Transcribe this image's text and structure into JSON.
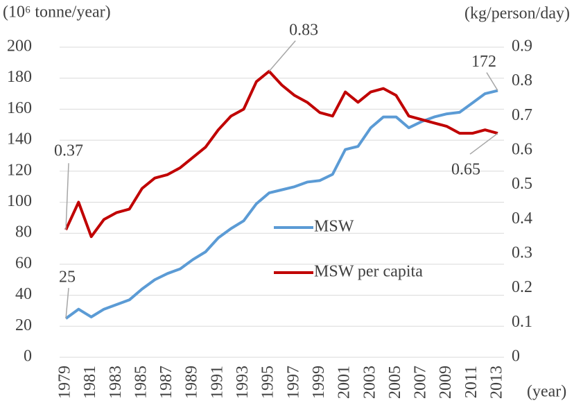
{
  "chart_data": {
    "type": "line",
    "y_label": "(10⁶ tonne/year)",
    "y2_label": "(kg/person/day)",
    "x_label": "(year)",
    "x": [
      1979,
      1980,
      1981,
      1982,
      1983,
      1984,
      1985,
      1986,
      1987,
      1988,
      1989,
      1990,
      1991,
      1992,
      1993,
      1994,
      1995,
      1996,
      1997,
      1998,
      1999,
      2000,
      2001,
      2002,
      2003,
      2004,
      2005,
      2006,
      2007,
      2008,
      2009,
      2010,
      2011,
      2012,
      2013
    ],
    "xlim": [
      1979,
      2013
    ],
    "xticks": [
      1979,
      1981,
      1983,
      1985,
      1987,
      1989,
      1991,
      1993,
      1995,
      1997,
      1999,
      2001,
      2003,
      2005,
      2007,
      2009,
      2011,
      2013
    ],
    "ylim": [
      0,
      200
    ],
    "yticks": [
      0,
      20,
      40,
      60,
      80,
      100,
      120,
      140,
      160,
      180,
      200
    ],
    "y2lim": [
      0,
      0.9
    ],
    "y2ticks": [
      0,
      0.1,
      0.2,
      0.3,
      0.4,
      0.5,
      0.6,
      0.7,
      0.8,
      0.9
    ],
    "grid": true,
    "legend": "center",
    "series": [
      {
        "name": "MSW",
        "color": "#5b9bd5",
        "values": [
          25,
          31,
          26,
          31,
          34,
          37,
          44,
          50,
          54,
          57,
          63,
          68,
          77,
          83,
          88,
          99,
          106,
          108,
          110,
          113,
          114,
          118,
          134,
          136,
          148,
          155,
          155,
          148,
          152,
          155,
          157,
          158,
          164,
          170,
          172
        ],
        "labeled_points": [
          0,
          34
        ]
      },
      {
        "name": "MSW per capita",
        "color": "#c00000",
        "axis": "y2",
        "values": [
          0.37,
          0.45,
          0.35,
          0.4,
          0.42,
          0.43,
          0.49,
          0.52,
          0.53,
          0.55,
          0.58,
          0.61,
          0.66,
          0.7,
          0.72,
          0.8,
          0.83,
          0.79,
          0.76,
          0.74,
          0.71,
          0.7,
          0.77,
          0.74,
          0.77,
          0.78,
          0.76,
          0.7,
          0.69,
          0.68,
          0.67,
          0.65,
          0.65,
          0.66,
          0.65
        ],
        "labeled_points": [
          0,
          16,
          34
        ]
      }
    ]
  }
}
